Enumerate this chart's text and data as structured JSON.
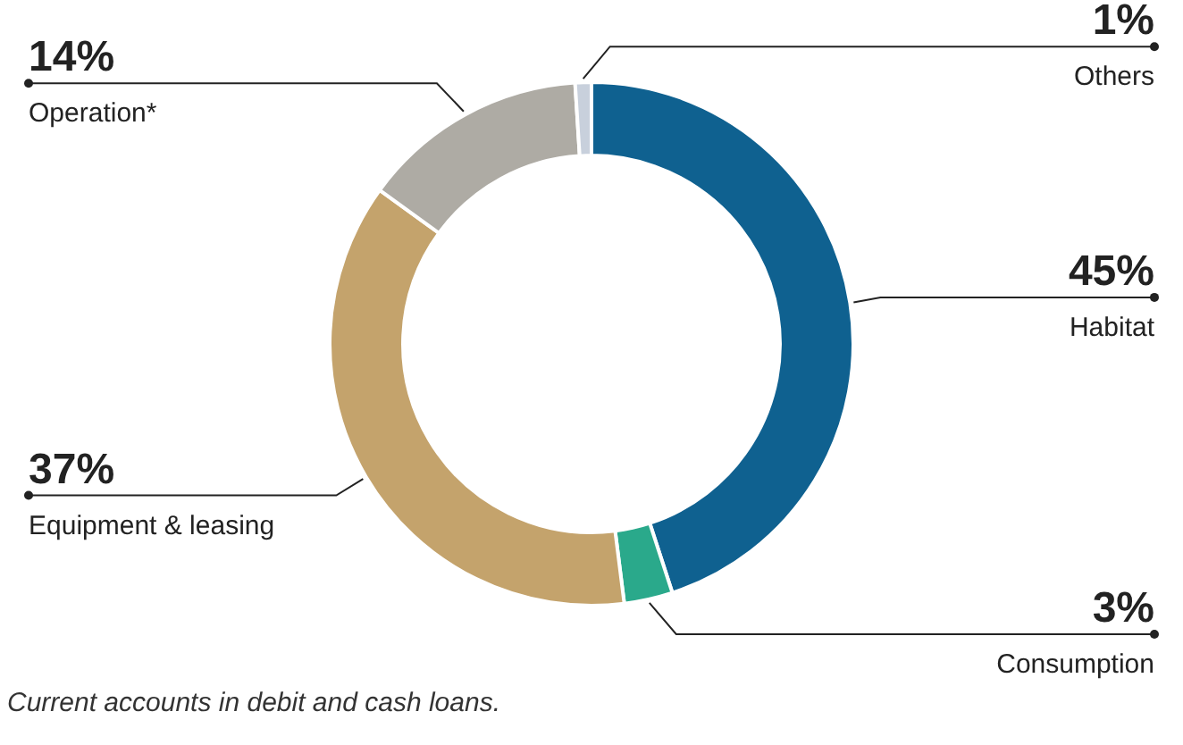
{
  "chart_data": {
    "type": "donut",
    "categories": [
      "Habitat",
      "Consumption",
      "Equipment & leasing",
      "Operation*",
      "Others"
    ],
    "values": [
      45,
      3,
      37,
      14,
      1
    ],
    "value_labels": [
      "45%",
      "3%",
      "37%",
      "14%",
      "1%"
    ],
    "colors": [
      "#0f6190",
      "#2aa98b",
      "#c4a36c",
      "#aeaba4",
      "#c8d0dc"
    ],
    "legend": false,
    "annotations": [
      "Current accounts in debit and cash loans."
    ]
  }
}
